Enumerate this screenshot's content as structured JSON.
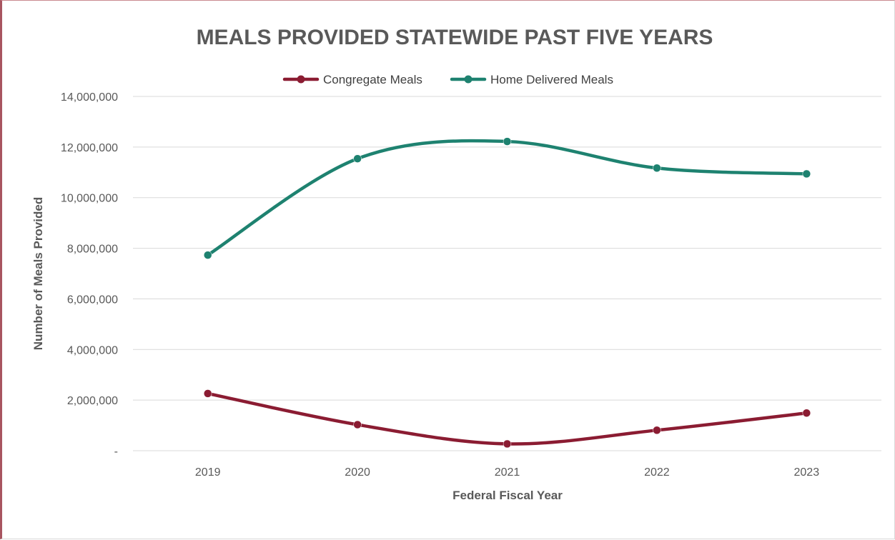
{
  "chart_data": {
    "type": "line",
    "title": "MEALS PROVIDED STATEWIDE PAST FIVE YEARS",
    "xlabel": "Federal Fiscal Year",
    "ylabel": "Number of Meals Provided",
    "categories": [
      "2019",
      "2020",
      "2021",
      "2022",
      "2023"
    ],
    "ylim": [
      0,
      14000000
    ],
    "yticks": [
      0,
      2000000,
      4000000,
      6000000,
      8000000,
      10000000,
      12000000,
      14000000
    ],
    "ytick_labels": [
      "-",
      "2,000,000",
      "4,000,000",
      "6,000,000",
      "8,000,000",
      "10,000,000",
      "12,000,000",
      "14,000,000"
    ],
    "grid": true,
    "smooth": true,
    "legend_position": "top-center",
    "series": [
      {
        "name": "Congregate Meals",
        "color": "#8b1c32",
        "values": [
          2260000,
          1030000,
          270000,
          810000,
          1490000
        ]
      },
      {
        "name": "Home Delivered Meals",
        "color": "#1e8270",
        "values": [
          7730000,
          11540000,
          12220000,
          11170000,
          10940000
        ]
      }
    ]
  }
}
